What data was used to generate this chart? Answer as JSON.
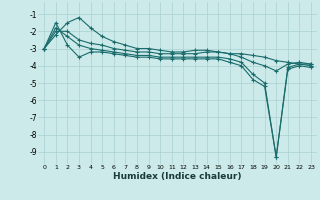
{
  "xlabel": "Humidex (Indice chaleur)",
  "bg_color": "#cceaea",
  "grid_color": "#aacfcf",
  "line_color": "#1a6b6b",
  "xlim": [
    -0.5,
    23.5
  ],
  "ylim": [
    -9.7,
    -0.3
  ],
  "yticks": [
    -9,
    -8,
    -7,
    -6,
    -5,
    -4,
    -3,
    -2,
    -1
  ],
  "xticks": [
    0,
    1,
    2,
    3,
    4,
    5,
    6,
    7,
    8,
    9,
    10,
    11,
    12,
    13,
    14,
    15,
    16,
    17,
    18,
    19,
    20,
    21,
    22,
    23
  ],
  "series": {
    "line1_x": [
      0,
      1,
      2,
      3,
      4,
      5,
      6,
      7,
      8,
      9,
      10,
      11,
      12,
      13,
      14,
      15,
      16,
      17,
      18,
      19,
      20,
      21,
      22,
      23
    ],
    "line1_y": [
      -3.0,
      -2.2,
      -1.5,
      -1.2,
      -1.8,
      -2.3,
      -2.6,
      -2.8,
      -3.0,
      -3.0,
      -3.1,
      -3.2,
      -3.2,
      -3.1,
      -3.1,
      -3.2,
      -3.3,
      -3.3,
      -3.4,
      -3.5,
      -3.7,
      -3.8,
      -3.9,
      -3.9
    ],
    "line2_x": [
      0,
      1,
      2,
      3,
      4,
      5,
      6,
      7,
      8,
      9,
      10,
      11,
      12,
      13,
      14,
      15,
      16,
      17,
      18,
      19,
      20,
      21,
      22,
      23
    ],
    "line2_y": [
      -3.0,
      -2.0,
      -2.0,
      -2.5,
      -2.7,
      -2.8,
      -3.0,
      -3.1,
      -3.2,
      -3.2,
      -3.3,
      -3.3,
      -3.3,
      -3.3,
      -3.2,
      -3.2,
      -3.3,
      -3.5,
      -3.8,
      -4.0,
      -4.3,
      -3.9,
      -3.8,
      -3.9
    ],
    "line3_x": [
      0,
      1,
      2,
      3,
      4,
      5,
      6,
      7,
      8,
      9,
      10,
      11,
      12,
      13,
      14,
      15,
      16,
      17,
      18,
      19,
      20,
      21,
      22,
      23
    ],
    "line3_y": [
      -3.0,
      -1.8,
      -2.3,
      -2.8,
      -3.0,
      -3.1,
      -3.2,
      -3.3,
      -3.4,
      -3.4,
      -3.5,
      -3.5,
      -3.5,
      -3.5,
      -3.5,
      -3.5,
      -3.6,
      -3.8,
      -4.5,
      -5.0,
      -9.3,
      -4.1,
      -3.9,
      -4.0
    ],
    "line4_x": [
      0,
      1,
      2,
      3,
      4,
      5,
      6,
      7,
      8,
      9,
      10,
      11,
      12,
      13,
      14,
      15,
      16,
      17,
      18,
      19,
      20,
      21,
      22,
      23
    ],
    "line4_y": [
      -3.0,
      -1.5,
      -2.8,
      -3.5,
      -3.2,
      -3.2,
      -3.3,
      -3.4,
      -3.5,
      -3.5,
      -3.6,
      -3.6,
      -3.6,
      -3.6,
      -3.6,
      -3.6,
      -3.8,
      -4.0,
      -4.8,
      -5.2,
      -9.3,
      -4.2,
      -4.0,
      -4.1
    ]
  }
}
